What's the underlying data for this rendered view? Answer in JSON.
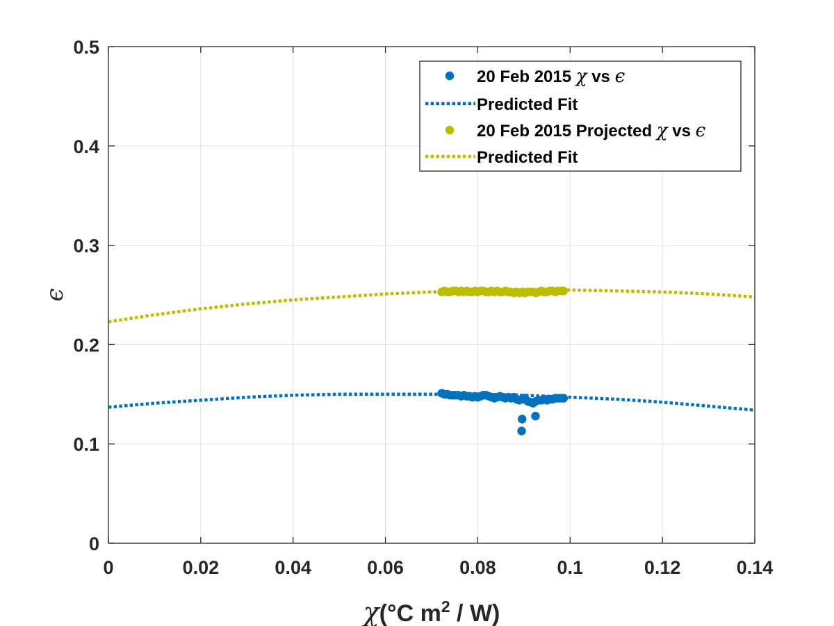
{
  "chart_data": {
    "type": "scatter",
    "xlabel": {
      "symbol": "χ",
      "text": "(°C m",
      "sup": "2",
      "tail": " / W)"
    },
    "ylabel": {
      "symbol": "ϵ"
    },
    "xlim": [
      0,
      0.14
    ],
    "ylim": [
      0,
      0.5
    ],
    "x_ticks": [
      0,
      0.02,
      0.04,
      0.06,
      0.08,
      0.1,
      0.12,
      0.14
    ],
    "x_tick_labels": [
      "0",
      "0.02",
      "0.04",
      "0.06",
      "0.08",
      "0.1",
      "0.12",
      "0.14"
    ],
    "y_ticks": [
      0,
      0.1,
      0.2,
      0.3,
      0.4,
      0.5
    ],
    "y_tick_labels": [
      "0",
      "0.1",
      "0.2",
      "0.3",
      "0.4",
      "0.5"
    ],
    "grid": true,
    "legend_position": "top-right",
    "colors": {
      "blue": "#0072BD",
      "olive": "#BDBD00",
      "grid": "#e1e1e1",
      "axis": "#262626"
    },
    "legend": [
      {
        "kind": "marker",
        "color": "#0072BD",
        "prefix": "20 Feb 2015 ",
        "sym1": "χ",
        "mid": " vs ",
        "sym2": "ϵ"
      },
      {
        "kind": "dotted",
        "color": "#0072BD",
        "prefix": "Predicted Fit",
        "sym1": "",
        "mid": "",
        "sym2": ""
      },
      {
        "kind": "marker",
        "color": "#BDBD00",
        "prefix": "20 Feb 2015 Projected ",
        "sym1": "χ",
        "mid": " vs ",
        "sym2": "ϵ"
      },
      {
        "kind": "dotted",
        "color": "#BDBD00",
        "prefix": "Predicted Fit",
        "sym1": "",
        "mid": "",
        "sym2": ""
      }
    ],
    "series": [
      {
        "kind": "scatter",
        "color": "#0072BD",
        "points": [
          [
            0.0722,
            0.151
          ],
          [
            0.0728,
            0.15
          ],
          [
            0.0734,
            0.15
          ],
          [
            0.074,
            0.149
          ],
          [
            0.0746,
            0.149
          ],
          [
            0.0752,
            0.149
          ],
          [
            0.0758,
            0.149
          ],
          [
            0.0764,
            0.148
          ],
          [
            0.077,
            0.149
          ],
          [
            0.0776,
            0.148
          ],
          [
            0.0782,
            0.148
          ],
          [
            0.0788,
            0.147
          ],
          [
            0.0794,
            0.148
          ],
          [
            0.08,
            0.147
          ],
          [
            0.0806,
            0.148
          ],
          [
            0.0812,
            0.149
          ],
          [
            0.0818,
            0.149
          ],
          [
            0.0824,
            0.148
          ],
          [
            0.083,
            0.147
          ],
          [
            0.0836,
            0.146
          ],
          [
            0.0842,
            0.147
          ],
          [
            0.0848,
            0.148
          ],
          [
            0.0854,
            0.147
          ],
          [
            0.086,
            0.146
          ],
          [
            0.0866,
            0.147
          ],
          [
            0.0872,
            0.146
          ],
          [
            0.0878,
            0.147
          ],
          [
            0.0884,
            0.145
          ],
          [
            0.089,
            0.144
          ],
          [
            0.0896,
            0.145
          ],
          [
            0.0902,
            0.146
          ],
          [
            0.0908,
            0.143
          ],
          [
            0.0914,
            0.142
          ],
          [
            0.092,
            0.141
          ],
          [
            0.0926,
            0.143
          ],
          [
            0.0932,
            0.144
          ],
          [
            0.0938,
            0.144
          ],
          [
            0.0944,
            0.145
          ],
          [
            0.095,
            0.144
          ],
          [
            0.0956,
            0.145
          ],
          [
            0.0962,
            0.145
          ],
          [
            0.0968,
            0.146
          ],
          [
            0.0974,
            0.146
          ],
          [
            0.098,
            0.146
          ],
          [
            0.0986,
            0.146
          ],
          [
            0.0895,
            0.113
          ],
          [
            0.0896,
            0.125
          ],
          [
            0.0925,
            0.128
          ]
        ]
      },
      {
        "kind": "line",
        "color": "#0072BD",
        "x": [
          0,
          0.01,
          0.02,
          0.03,
          0.04,
          0.05,
          0.06,
          0.07,
          0.08,
          0.09,
          0.1,
          0.11,
          0.12,
          0.13,
          0.14
        ],
        "y": [
          0.137,
          0.141,
          0.144,
          0.147,
          0.149,
          0.15,
          0.15,
          0.15,
          0.15,
          0.149,
          0.147,
          0.145,
          0.142,
          0.138,
          0.134
        ]
      },
      {
        "kind": "scatter",
        "color": "#BDBD00",
        "points": [
          [
            0.0722,
            0.253
          ],
          [
            0.0728,
            0.254
          ],
          [
            0.0734,
            0.253
          ],
          [
            0.074,
            0.253
          ],
          [
            0.0746,
            0.254
          ],
          [
            0.0752,
            0.254
          ],
          [
            0.0758,
            0.253
          ],
          [
            0.0764,
            0.254
          ],
          [
            0.077,
            0.253
          ],
          [
            0.0776,
            0.254
          ],
          [
            0.0782,
            0.253
          ],
          [
            0.0788,
            0.253
          ],
          [
            0.0794,
            0.254
          ],
          [
            0.08,
            0.253
          ],
          [
            0.0806,
            0.254
          ],
          [
            0.0812,
            0.254
          ],
          [
            0.0818,
            0.253
          ],
          [
            0.0824,
            0.253
          ],
          [
            0.083,
            0.254
          ],
          [
            0.0836,
            0.253
          ],
          [
            0.0842,
            0.254
          ],
          [
            0.0848,
            0.253
          ],
          [
            0.0854,
            0.253
          ],
          [
            0.086,
            0.254
          ],
          [
            0.0866,
            0.253
          ],
          [
            0.0872,
            0.253
          ],
          [
            0.0878,
            0.252
          ],
          [
            0.0884,
            0.253
          ],
          [
            0.089,
            0.252
          ],
          [
            0.0896,
            0.253
          ],
          [
            0.0902,
            0.252
          ],
          [
            0.0908,
            0.253
          ],
          [
            0.0914,
            0.253
          ],
          [
            0.092,
            0.253
          ],
          [
            0.0926,
            0.252
          ],
          [
            0.0932,
            0.253
          ],
          [
            0.0938,
            0.254
          ],
          [
            0.0944,
            0.253
          ],
          [
            0.095,
            0.253
          ],
          [
            0.0956,
            0.254
          ],
          [
            0.0962,
            0.254
          ],
          [
            0.0968,
            0.253
          ],
          [
            0.0974,
            0.254
          ],
          [
            0.098,
            0.254
          ],
          [
            0.0986,
            0.254
          ]
        ]
      },
      {
        "kind": "line",
        "color": "#BDBD00",
        "x": [
          0,
          0.01,
          0.02,
          0.03,
          0.04,
          0.05,
          0.06,
          0.07,
          0.08,
          0.09,
          0.1,
          0.11,
          0.12,
          0.13,
          0.14
        ],
        "y": [
          0.223,
          0.23,
          0.236,
          0.241,
          0.245,
          0.248,
          0.251,
          0.253,
          0.254,
          0.255,
          0.255,
          0.254,
          0.253,
          0.251,
          0.248
        ]
      }
    ]
  }
}
